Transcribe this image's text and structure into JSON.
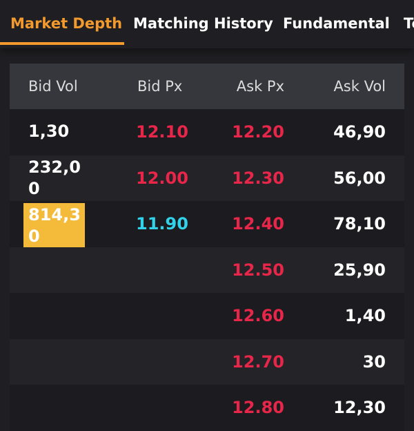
{
  "tabs": [
    {
      "label": "Market Depth",
      "active": true
    },
    {
      "label": "Matching History",
      "active": false
    },
    {
      "label": "Fundamental",
      "active": false
    },
    {
      "label": "Te",
      "active": false
    }
  ],
  "table": {
    "headers": [
      "Bid Vol",
      "Bid Px",
      "Ask Px",
      "Ask Vol"
    ],
    "rows": [
      {
        "bid_vol": "1,30",
        "bid_px": "12.10",
        "ask_px": "12.20",
        "ask_vol": "46,90"
      },
      {
        "bid_vol": "232,00",
        "bid_px": "12.00",
        "ask_px": "12.30",
        "ask_vol": "56,00"
      },
      {
        "bid_vol": "814,30",
        "bid_px": "11.90",
        "ask_px": "12.40",
        "ask_vol": "78,10"
      },
      {
        "bid_vol": "",
        "bid_px": "",
        "ask_px": "12.50",
        "ask_vol": "25,90"
      },
      {
        "bid_vol": "",
        "bid_px": "",
        "ask_px": "12.60",
        "ask_vol": "1,40"
      },
      {
        "bid_vol": "",
        "bid_px": "",
        "ask_px": "12.70",
        "ask_vol": "30"
      },
      {
        "bid_vol": "",
        "bid_px": "",
        "ask_px": "12.80",
        "ask_vol": "12,30"
      }
    ]
  },
  "colors": {
    "accent": "#f29a2e",
    "ask_price": "#e8264a",
    "bid_best": "#31d2ea",
    "highlight": "#f4ba3a",
    "background": "#1f1f23"
  }
}
